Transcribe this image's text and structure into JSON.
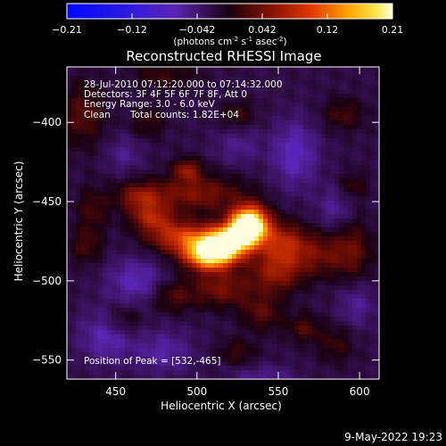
{
  "chart_data": {
    "type": "heatmap",
    "title": "Reconstructed RHESSI Image",
    "xlabel": "Heliocentric X (arcsec)",
    "ylabel": "Heliocentric Y (arcsec)",
    "xlim": [
      420,
      612
    ],
    "ylim": [
      -562,
      -365
    ],
    "x_ticks": [
      450,
      500,
      550,
      600
    ],
    "y_ticks": [
      -400,
      -450,
      -500,
      -550
    ],
    "grid": false,
    "annotations": {
      "time_range": "28-Jul-2010 07:12:20.000 to 07:14:32.000",
      "detectors": "Detectors: 3F 4F 5F 6F 7F 8F, Att 0",
      "energy_range": "Energy Range: 3.0 - 6.0 keV",
      "method": "Clean",
      "total_counts": "Total counts: 1.82E+04",
      "peak_position": "Position of Peak = [532,-465]"
    },
    "peak": {
      "x": 532,
      "y": -465
    },
    "colorbar": {
      "range": [
        -0.21,
        0.21
      ],
      "tick_labels": [
        "-0.21",
        "-0.12",
        "-0.042",
        "0.042",
        "0.12",
        "0.21"
      ],
      "unit_base": "(photons cm",
      "unit_exp1": "-2",
      "unit_mid1": " s",
      "unit_exp2": "-1",
      "unit_mid2": " asec",
      "unit_exp3": "-2",
      "unit_end": ")"
    },
    "sources": [
      {
        "x": 532,
        "y": -465,
        "sx": 8,
        "sy": 8,
        "amp": 0.3
      },
      {
        "x": 508,
        "y": -483,
        "sx": 11,
        "sy": 7,
        "amp": 0.23
      },
      {
        "x": 519,
        "y": -475,
        "sx": 10,
        "sy": 7,
        "amp": 0.19
      },
      {
        "x": 490,
        "y": -472,
        "sx": 14,
        "sy": 7,
        "amp": 0.11
      },
      {
        "x": 472,
        "y": -460,
        "sx": 9,
        "sy": 6,
        "amp": 0.085
      },
      {
        "x": 465,
        "y": -447,
        "sx": 10,
        "sy": 6,
        "amp": 0.075
      },
      {
        "x": 500,
        "y": -445,
        "sx": 20,
        "sy": 8,
        "amp": 0.07
      },
      {
        "x": 494,
        "y": -430,
        "sx": 6,
        "sy": 5,
        "amp": 0.075
      },
      {
        "x": 552,
        "y": -476,
        "sx": 10,
        "sy": 9,
        "amp": 0.085
      },
      {
        "x": 548,
        "y": -495,
        "sx": 11,
        "sy": 9,
        "amp": 0.075
      },
      {
        "x": 574,
        "y": -483,
        "sx": 14,
        "sy": 10,
        "amp": 0.06
      },
      {
        "x": 515,
        "y": -505,
        "sx": 13,
        "sy": 8,
        "amp": 0.065
      },
      {
        "x": 485,
        "y": -510,
        "sx": 9,
        "sy": 7,
        "amp": 0.045
      },
      {
        "x": 540,
        "y": -520,
        "sx": 9,
        "sy": 8,
        "amp": 0.05
      },
      {
        "x": 566,
        "y": -530,
        "sx": 7,
        "sy": 6,
        "amp": 0.045
      },
      {
        "x": 525,
        "y": -545,
        "sx": 8,
        "sy": 6,
        "amp": 0.035
      },
      {
        "x": 430,
        "y": -395,
        "sx": 9,
        "sy": 14,
        "amp": 0.05
      },
      {
        "x": 436,
        "y": -455,
        "sx": 7,
        "sy": 10,
        "amp": 0.04
      },
      {
        "x": 432,
        "y": -478,
        "sx": 7,
        "sy": 8,
        "amp": 0.04
      },
      {
        "x": 470,
        "y": -400,
        "sx": 7,
        "sy": 7,
        "amp": 0.035
      },
      {
        "x": 455,
        "y": -525,
        "sx": 8,
        "sy": 7,
        "amp": 0.04
      },
      {
        "x": 596,
        "y": -480,
        "sx": 8,
        "sy": 14,
        "amp": 0.045
      },
      {
        "x": 596,
        "y": -440,
        "sx": 6,
        "sy": 6,
        "amp": 0.035
      },
      {
        "x": 590,
        "y": -395,
        "sx": 9,
        "sy": 7,
        "amp": 0.04
      },
      {
        "x": 525,
        "y": -395,
        "sx": 7,
        "sy": 6,
        "amp": 0.035
      },
      {
        "x": 480,
        "y": -370,
        "sx": 14,
        "sy": 6,
        "amp": 0.035
      },
      {
        "x": 585,
        "y": -540,
        "sx": 8,
        "sy": 8,
        "amp": 0.035
      },
      {
        "x": 560,
        "y": -420,
        "sx": 10,
        "sy": 15,
        "amp": -0.055
      },
      {
        "x": 525,
        "y": -415,
        "sx": 10,
        "sy": 8,
        "amp": -0.03
      },
      {
        "x": 462,
        "y": -500,
        "sx": 12,
        "sy": 10,
        "amp": -0.05
      },
      {
        "x": 445,
        "y": -535,
        "sx": 12,
        "sy": 12,
        "amp": -0.05
      },
      {
        "x": 480,
        "y": -545,
        "sx": 12,
        "sy": 10,
        "amp": -0.04
      },
      {
        "x": 585,
        "y": -455,
        "sx": 8,
        "sy": 10,
        "amp": -0.035
      },
      {
        "x": 598,
        "y": -515,
        "sx": 8,
        "sy": 10,
        "amp": -0.035
      },
      {
        "x": 540,
        "y": -560,
        "sx": 14,
        "sy": 5,
        "amp": -0.03
      },
      {
        "x": 455,
        "y": -420,
        "sx": 8,
        "sy": 8,
        "amp": -0.03
      }
    ],
    "background": -0.022
  },
  "footer": {
    "timestamp": "9-May-2022 19:23"
  }
}
